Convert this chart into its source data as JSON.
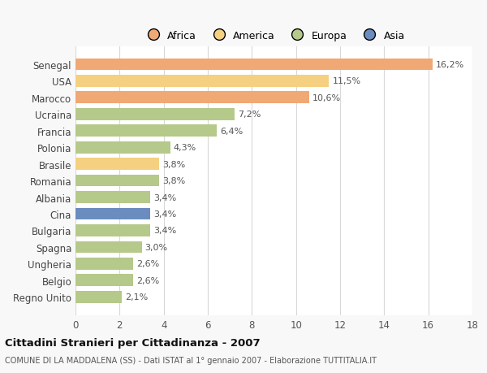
{
  "categories": [
    "Senegal",
    "USA",
    "Marocco",
    "Ucraina",
    "Francia",
    "Polonia",
    "Brasile",
    "Romania",
    "Albania",
    "Cina",
    "Bulgaria",
    "Spagna",
    "Ungheria",
    "Belgio",
    "Regno Unito"
  ],
  "values": [
    16.2,
    11.5,
    10.6,
    7.2,
    6.4,
    4.3,
    3.8,
    3.8,
    3.4,
    3.4,
    3.4,
    3.0,
    2.6,
    2.6,
    2.1
  ],
  "labels": [
    "16,2%",
    "11,5%",
    "10,6%",
    "7,2%",
    "6,4%",
    "4,3%",
    "3,8%",
    "3,8%",
    "3,4%",
    "3,4%",
    "3,4%",
    "3,0%",
    "2,6%",
    "2,6%",
    "2,1%"
  ],
  "colors": [
    "#f0a875",
    "#f5d080",
    "#f0a875",
    "#b5c98a",
    "#b5c98a",
    "#b5c98a",
    "#f5d080",
    "#b5c98a",
    "#b5c98a",
    "#6b8cbf",
    "#b5c98a",
    "#b5c98a",
    "#b5c98a",
    "#b5c98a",
    "#b5c98a"
  ],
  "legend_labels": [
    "Africa",
    "America",
    "Europa",
    "Asia"
  ],
  "legend_colors": [
    "#f0a875",
    "#f5d080",
    "#b5c98a",
    "#6b8cbf"
  ],
  "xlim": [
    0,
    18
  ],
  "xticks": [
    0,
    2,
    4,
    6,
    8,
    10,
    12,
    14,
    16,
    18
  ],
  "title": "Cittadini Stranieri per Cittadinanza - 2007",
  "subtitle": "COMUNE DI LA MADDALENA (SS) - Dati ISTAT al 1° gennaio 2007 - Elaborazione TUTTITALIA.IT",
  "bg_color": "#f8f8f8",
  "plot_bg_color": "#ffffff",
  "grid_color": "#d8d8d8",
  "bar_height": 0.72
}
